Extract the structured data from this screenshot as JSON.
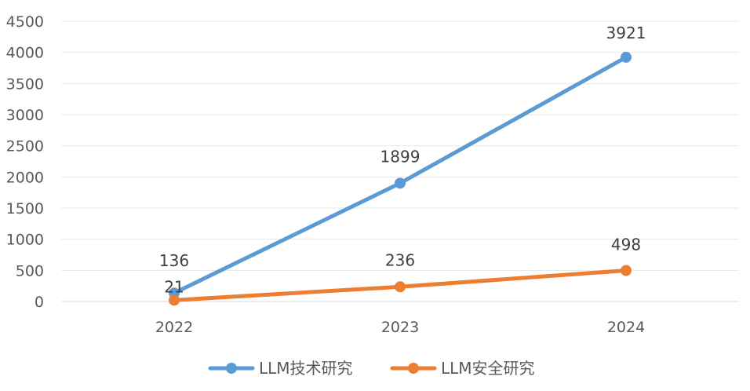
{
  "chart_data": {
    "type": "line",
    "title": "",
    "xlabel": "",
    "ylabel": "",
    "categories": [
      "2022",
      "2023",
      "2024"
    ],
    "ylim": [
      0,
      4500
    ],
    "yticks": [
      "0",
      "500",
      "1000",
      "1500",
      "2000",
      "2500",
      "3000",
      "3500",
      "4000",
      "4500"
    ],
    "grid": true,
    "legend": "bottom",
    "series": [
      {
        "name": "LLM技术研究",
        "values": [
          136,
          1899,
          3921
        ],
        "labels": [
          "136",
          "1899",
          "3921"
        ],
        "color": "#5B9BD5"
      },
      {
        "name": "LLM安全研究",
        "values": [
          21,
          236,
          498
        ],
        "labels": [
          "21",
          "236",
          "498"
        ],
        "color": "#ED7D31"
      }
    ]
  }
}
